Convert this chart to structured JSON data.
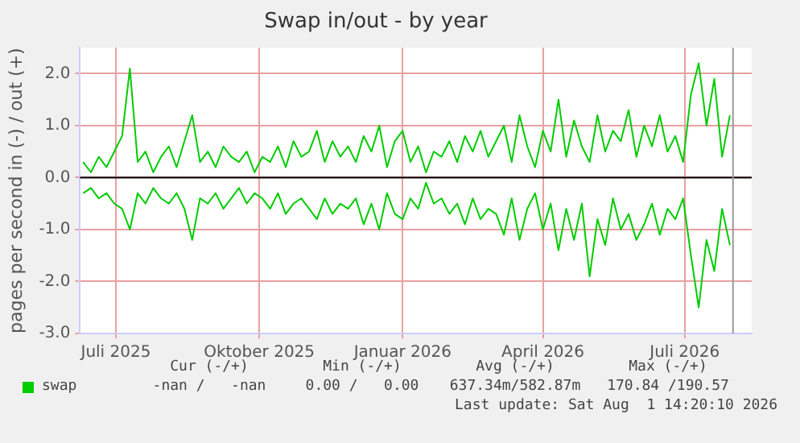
{
  "chart_data": {
    "type": "line",
    "title": "Swap in/out - by year",
    "ylabel": "pages per second in (-) / out (+)",
    "x": [
      "2025-06-10",
      "2025-06-15",
      "2025-06-20",
      "2025-06-25",
      "2025-06-30",
      "2025-07-05",
      "2025-07-10",
      "2025-07-15",
      "2025-07-20",
      "2025-07-25",
      "2025-07-30",
      "2025-08-04",
      "2025-08-09",
      "2025-08-14",
      "2025-08-19",
      "2025-08-24",
      "2025-08-29",
      "2025-09-03",
      "2025-09-08",
      "2025-09-13",
      "2025-09-18",
      "2025-09-23",
      "2025-09-28",
      "2025-10-03",
      "2025-10-08",
      "2025-10-13",
      "2025-10-18",
      "2025-10-23",
      "2025-10-28",
      "2025-11-02",
      "2025-11-07",
      "2025-11-12",
      "2025-11-17",
      "2025-11-22",
      "2025-11-27",
      "2025-12-02",
      "2025-12-07",
      "2025-12-12",
      "2025-12-17",
      "2025-12-22",
      "2025-12-27",
      "2026-01-01",
      "2026-01-06",
      "2026-01-11",
      "2026-01-16",
      "2026-01-21",
      "2026-01-26",
      "2026-01-31",
      "2026-02-05",
      "2026-02-10",
      "2026-02-15",
      "2026-02-20",
      "2026-02-25",
      "2026-03-02",
      "2026-03-07",
      "2026-03-12",
      "2026-03-17",
      "2026-03-22",
      "2026-03-27",
      "2026-04-01",
      "2026-04-06",
      "2026-04-11",
      "2026-04-16",
      "2026-04-21",
      "2026-04-26",
      "2026-05-01",
      "2026-05-06",
      "2026-05-11",
      "2026-05-16",
      "2026-05-21",
      "2026-05-26",
      "2026-05-31",
      "2026-06-05",
      "2026-06-10",
      "2026-06-15",
      "2026-06-20",
      "2026-06-25",
      "2026-06-30",
      "2026-07-05",
      "2026-07-10",
      "2026-07-15",
      "2026-07-20",
      "2026-07-25",
      "2026-07-30"
    ],
    "series": [
      {
        "name": "swap",
        "color": "#00cc00",
        "values": [
          0.3,
          0.1,
          0.4,
          0.2,
          0.5,
          0.8,
          2.1,
          0.3,
          0.5,
          0.1,
          0.4,
          0.6,
          0.2,
          0.7,
          1.2,
          0.3,
          0.5,
          0.2,
          0.6,
          0.4,
          0.3,
          0.5,
          0.1,
          0.4,
          0.3,
          0.6,
          0.2,
          0.7,
          0.4,
          0.5,
          0.9,
          0.3,
          0.7,
          0.4,
          0.6,
          0.3,
          0.8,
          0.5,
          1.0,
          0.2,
          0.7,
          0.9,
          0.3,
          0.6,
          0.1,
          0.5,
          0.4,
          0.7,
          0.3,
          0.8,
          0.5,
          0.9,
          0.4,
          0.7,
          1.0,
          0.3,
          1.2,
          0.6,
          0.2,
          0.9,
          0.5,
          1.5,
          0.4,
          1.1,
          0.6,
          0.3,
          1.2,
          0.5,
          0.9,
          0.7,
          1.3,
          0.4,
          1.0,
          0.6,
          1.2,
          0.5,
          0.8,
          0.3,
          1.6,
          2.2,
          1.0,
          1.9,
          0.4,
          1.2
        ]
      },
      {
        "color": "#00cc00",
        "values": [
          -0.3,
          -0.2,
          -0.4,
          -0.3,
          -0.5,
          -0.6,
          -1.0,
          -0.3,
          -0.5,
          -0.2,
          -0.4,
          -0.5,
          -0.3,
          -0.6,
          -1.2,
          -0.4,
          -0.5,
          -0.3,
          -0.6,
          -0.4,
          -0.2,
          -0.5,
          -0.3,
          -0.4,
          -0.6,
          -0.3,
          -0.7,
          -0.5,
          -0.4,
          -0.6,
          -0.8,
          -0.4,
          -0.7,
          -0.5,
          -0.6,
          -0.4,
          -0.9,
          -0.5,
          -1.0,
          -0.3,
          -0.7,
          -0.8,
          -0.4,
          -0.6,
          -0.1,
          -0.5,
          -0.4,
          -0.7,
          -0.5,
          -0.9,
          -0.4,
          -0.8,
          -0.6,
          -0.7,
          -1.1,
          -0.4,
          -1.2,
          -0.6,
          -0.3,
          -1.0,
          -0.5,
          -1.4,
          -0.6,
          -1.2,
          -0.5,
          -1.9,
          -0.8,
          -1.3,
          -0.4,
          -1.0,
          -0.7,
          -1.2,
          -0.9,
          -0.5,
          -1.1,
          -0.6,
          -0.8,
          -0.4,
          -1.5,
          -2.5,
          -1.2,
          -1.8,
          -0.6,
          -1.3
        ]
      }
    ],
    "xlim": [
      "2025-06-08",
      "2026-08-13"
    ],
    "xticks": [
      {
        "value": "2025-07-01",
        "label": "Juli 2025"
      },
      {
        "value": "2025-10-01",
        "label": "Oktober 2025"
      },
      {
        "value": "2026-01-01",
        "label": "Januar 2026"
      },
      {
        "value": "2026-04-01",
        "label": "April 2026"
      },
      {
        "value": "2026-07-01",
        "label": "Juli 2026"
      }
    ],
    "ylim": [
      -3,
      2.5
    ],
    "yticks": [
      {
        "value": -3,
        "label": "-3.0"
      },
      {
        "value": -2,
        "label": "-2.0"
      },
      {
        "value": -1,
        "label": "-1.0"
      },
      {
        "value": 0,
        "label": "0.0"
      },
      {
        "value": 1,
        "label": "1.0"
      },
      {
        "value": 2,
        "label": "2.0"
      }
    ],
    "ref_lines": [
      {
        "axis": "y",
        "value": 0,
        "color": "#000000"
      },
      {
        "axis": "x",
        "value": "2026-08-01",
        "color": "#999999"
      }
    ],
    "grid": true,
    "marker": "none",
    "legend": "bottom",
    "annotations": [
      "Cur (-/+)",
      "Min (-/+)",
      "Avg (-/+)",
      "Max (-/+)",
      "-nan /   -nan",
      "0.00 /   0.00",
      "637.34m/582.87m",
      "170.84 /190.57",
      "Last update: Sat Aug  1 14:20:10 2026"
    ]
  }
}
